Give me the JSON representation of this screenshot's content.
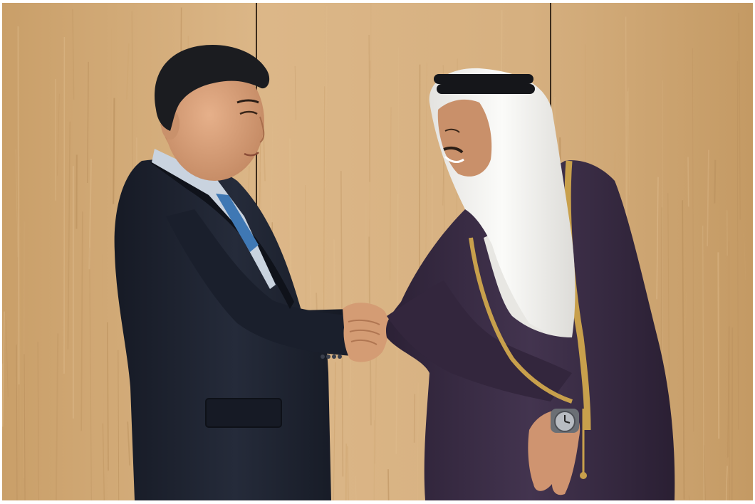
{
  "photo": {
    "subject": "two-men-shaking-hands",
    "colors": {
      "wall_light": "#e0bd8e",
      "wall_mid": "#cfa672",
      "wall_dark": "#b98f5c",
      "suit": "#1d2230",
      "suit_shadow": "#10131c",
      "shirt": "#c9d3df",
      "tie": "#3f78b4",
      "hair": "#1b1c20",
      "skin": "#d9a27c",
      "skin_shadow": "#b87c5a",
      "robe": "#3a2c45",
      "robe_shadow": "#261c30",
      "robe_trim": "#c8a04c",
      "headscarf": "#f2f1ee",
      "agal": "#15161a",
      "watch": "#b8bcc2"
    }
  }
}
